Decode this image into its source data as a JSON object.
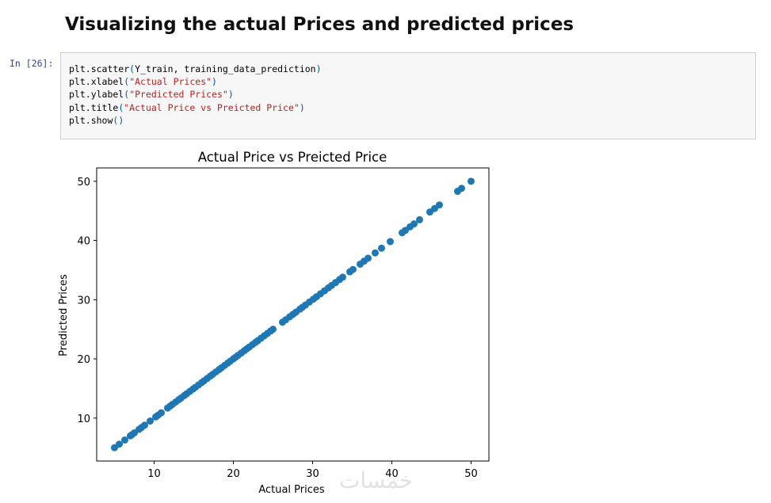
{
  "heading": "Visualizing the actual Prices and predicted prices",
  "cell": {
    "prompt": "In [26]:",
    "code": [
      "plt.scatter(Y_train, training_data_prediction)",
      "plt.xlabel(\"Actual Prices\")",
      "plt.ylabel(\"Predicted Prices\")",
      "plt.title(\"Actual Price vs Preicted Price\")",
      "plt.show()"
    ]
  },
  "watermark": "خمسات",
  "chart_data": {
    "type": "scatter",
    "title": "Actual Price vs Preicted Price",
    "x_label": "Actual Prices",
    "y_label": "Predicted Prices",
    "color": "#1f77b4",
    "xlim": [
      2.75,
      52.25
    ],
    "ylim": [
      2.75,
      52.25
    ],
    "xticks": [
      10,
      20,
      30,
      40,
      50
    ],
    "yticks": [
      10,
      20,
      30,
      40,
      50
    ],
    "x": [
      5,
      5.6,
      6.3,
      7,
      7.2,
      7.5,
      8.1,
      8.4,
      8.8,
      9.5,
      10.2,
      10.5,
      10.9,
      11.7,
      12,
      12.3,
      12.7,
      13.1,
      13.4,
      13.8,
      14.1,
      14.5,
      14.9,
      15.2,
      15.6,
      16,
      16.3,
      16.7,
      17.1,
      17.4,
      17.8,
      18.2,
      18.5,
      18.9,
      19.3,
      19.6,
      20,
      20.3,
      20.6,
      21,
      21.4,
      21.7,
      22,
      22.4,
      22.8,
      23.1,
      23.5,
      23.9,
      24.3,
      24.7,
      25,
      26.2,
      26.6,
      27.1,
      27.5,
      27.9,
      28.4,
      28.7,
      29.1,
      29.6,
      30.1,
      30.5,
      31,
      31.5,
      32,
      32.4,
      32.9,
      33.4,
      33.8,
      34.7,
      35.1,
      36,
      36.5,
      37,
      37.9,
      38.7,
      39.8,
      41.3,
      41.7,
      42.3,
      42.8,
      43.5,
      44.8,
      45.4,
      46,
      48.3,
      48.8,
      50
    ],
    "y": [
      5,
      5.6,
      6.3,
      7,
      7.2,
      7.5,
      8.1,
      8.4,
      8.8,
      9.5,
      10.2,
      10.5,
      10.9,
      11.7,
      12,
      12.3,
      12.7,
      13.1,
      13.4,
      13.8,
      14.1,
      14.5,
      14.9,
      15.2,
      15.6,
      16,
      16.3,
      16.7,
      17.1,
      17.4,
      17.8,
      18.2,
      18.5,
      18.9,
      19.3,
      19.6,
      20,
      20.3,
      20.6,
      21,
      21.4,
      21.7,
      22,
      22.4,
      22.8,
      23.1,
      23.5,
      23.9,
      24.3,
      24.7,
      25,
      26.2,
      26.6,
      27.1,
      27.5,
      27.9,
      28.4,
      28.7,
      29.1,
      29.6,
      30.1,
      30.5,
      31,
      31.5,
      32,
      32.4,
      32.9,
      33.4,
      33.8,
      34.7,
      35.1,
      36,
      36.5,
      37,
      37.9,
      38.7,
      39.8,
      41.3,
      41.7,
      42.3,
      42.8,
      43.5,
      44.8,
      45.4,
      46,
      48.3,
      48.8,
      50
    ]
  }
}
